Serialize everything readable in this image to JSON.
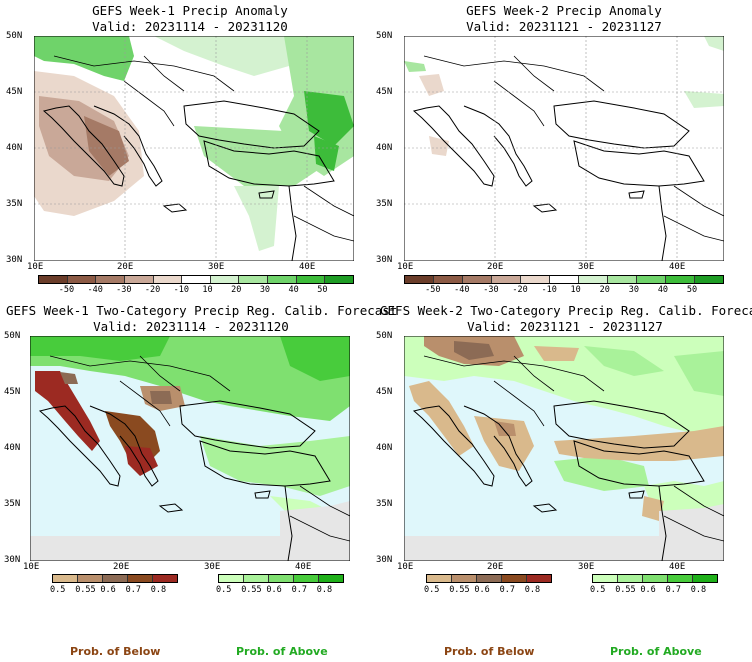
{
  "panels": [
    {
      "title": "GEFS Week-1 Precip Anomaly",
      "valid": "Valid: 20231114 - 20231120",
      "lat_labels": [
        "50N",
        "45N",
        "40N",
        "35N",
        "30N"
      ],
      "lon_labels": [
        "10E",
        "20E",
        "30E",
        "40E"
      ]
    },
    {
      "title": "GEFS Week-2 Precip Anomaly",
      "valid": "Valid: 20231121 - 20231127",
      "lat_labels": [
        "50N",
        "45N",
        "40N",
        "35N",
        "30N"
      ],
      "lon_labels": [
        "10E",
        "20E",
        "30E",
        "40E"
      ]
    },
    {
      "title": "GEFS Week-1 Two-Category Precip Reg. Calib. Forecast",
      "valid": "Valid: 20231114 - 20231120",
      "lat_labels": [
        "50N",
        "45N",
        "40N",
        "35N",
        "30N"
      ],
      "lon_labels": [
        "10E",
        "20E",
        "30E",
        "40E"
      ]
    },
    {
      "title": "GEFS Week-2 Two-Category Precip Reg. Calib. Forecast",
      "valid": "Valid: 20231121 - 20231127",
      "lat_labels": [
        "50N",
        "45N",
        "40N",
        "35N",
        "30N"
      ],
      "lon_labels": [
        "10E",
        "20E",
        "30E",
        "40E"
      ]
    }
  ],
  "anomaly_scale": {
    "labels": [
      "-50",
      "-40",
      "-30",
      "-20",
      "-10",
      "10",
      "20",
      "30",
      "40",
      "50"
    ],
    "colors": [
      "#6b3d2a",
      "#8c5a45",
      "#a57a66",
      "#c9a898",
      "#ead8cc",
      "#ffffff",
      "#d4f2d0",
      "#a8e6a0",
      "#6fd36a",
      "#3dbc3a",
      "#1e9c24"
    ]
  },
  "prob_below_scale": {
    "labels": [
      "0.5",
      "0.55",
      "0.6",
      "0.7",
      "0.8"
    ],
    "colors": [
      "#d9b98c",
      "#b98f6c",
      "#8c6b55",
      "#8a4a20",
      "#9c2a22"
    ]
  },
  "prob_above_scale": {
    "labels": [
      "0.5",
      "0.55",
      "0.6",
      "0.7",
      "0.8"
    ],
    "colors": [
      "#ccffbb",
      "#a9f29a",
      "#7fe070",
      "#48cc3c",
      "#1fb01a"
    ]
  },
  "footer": {
    "below_label": "Prob. of Below",
    "above_label": "Prob. of Above",
    "below_color": "#8b4513",
    "above_color": "#22aa22"
  },
  "colors": {
    "sea": "#dff7fb",
    "nodata": "#e6e6e6",
    "coast": "#000000",
    "grid": "#9a9a9a"
  }
}
